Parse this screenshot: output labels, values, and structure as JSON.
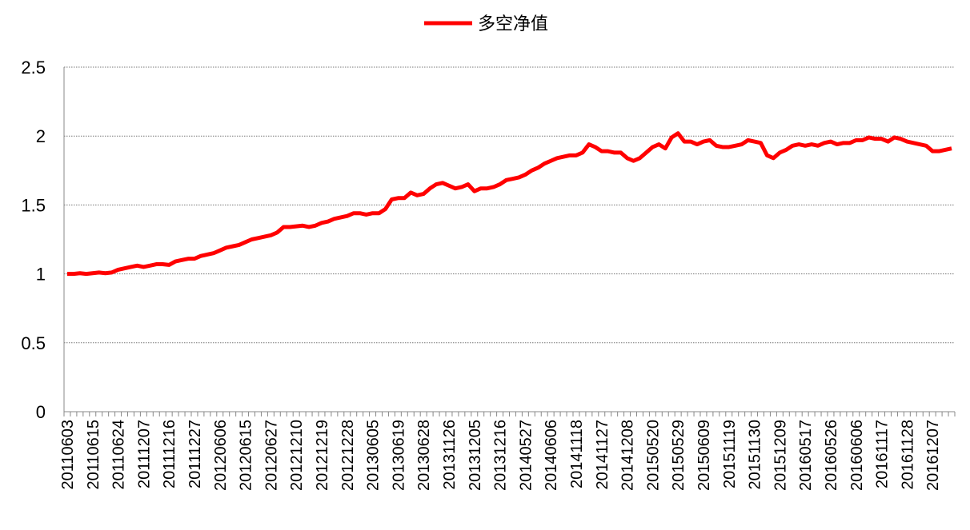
{
  "chart_data": {
    "type": "line",
    "categories": [
      "20110603",
      null,
      null,
      null,
      "20110615",
      null,
      null,
      null,
      "20110624",
      null,
      null,
      null,
      "20111207",
      null,
      null,
      null,
      "20111216",
      null,
      null,
      null,
      "20111227",
      null,
      null,
      null,
      "20120606",
      null,
      null,
      null,
      "20120615",
      null,
      null,
      null,
      "20120627",
      null,
      null,
      null,
      "20121210",
      null,
      null,
      null,
      "20121219",
      null,
      null,
      null,
      "20121228",
      null,
      null,
      null,
      "20130605",
      null,
      null,
      null,
      "20130619",
      null,
      null,
      null,
      "20130628",
      null,
      null,
      null,
      "20131126",
      null,
      null,
      null,
      "20131205",
      null,
      null,
      null,
      "20131216",
      null,
      null,
      null,
      "20140527",
      null,
      null,
      null,
      "20140606",
      null,
      null,
      null,
      "20141118",
      null,
      null,
      null,
      "20141127",
      null,
      null,
      null,
      "20141208",
      null,
      null,
      null,
      "20150520",
      null,
      null,
      null,
      "20150529",
      null,
      null,
      null,
      "20150609",
      null,
      null,
      null,
      "20151119",
      null,
      null,
      null,
      "20151130",
      null,
      null,
      null,
      "20151209",
      null,
      null,
      null,
      "20160517",
      null,
      null,
      null,
      "20160526",
      null,
      null,
      null,
      "20160606",
      null,
      null,
      null,
      "20161117",
      null,
      null,
      null,
      "20161128",
      null,
      null,
      null,
      "20161207",
      null,
      null,
      null
    ],
    "series": [
      {
        "name": "多空净值",
        "color": "#ff0000",
        "values": [
          1.0,
          1.0,
          1.005,
          1.0,
          1.005,
          1.01,
          1.005,
          1.01,
          1.03,
          1.04,
          1.05,
          1.06,
          1.05,
          1.06,
          1.07,
          1.07,
          1.065,
          1.09,
          1.1,
          1.11,
          1.11,
          1.13,
          1.14,
          1.15,
          1.17,
          1.19,
          1.2,
          1.21,
          1.23,
          1.25,
          1.26,
          1.27,
          1.28,
          1.3,
          1.34,
          1.34,
          1.345,
          1.35,
          1.34,
          1.35,
          1.37,
          1.38,
          1.4,
          1.41,
          1.42,
          1.44,
          1.44,
          1.43,
          1.44,
          1.44,
          1.47,
          1.54,
          1.55,
          1.55,
          1.59,
          1.57,
          1.58,
          1.62,
          1.65,
          1.66,
          1.64,
          1.62,
          1.63,
          1.65,
          1.6,
          1.62,
          1.62,
          1.63,
          1.65,
          1.68,
          1.69,
          1.7,
          1.72,
          1.75,
          1.77,
          1.8,
          1.82,
          1.84,
          1.85,
          1.86,
          1.86,
          1.88,
          1.94,
          1.92,
          1.89,
          1.89,
          1.88,
          1.88,
          1.84,
          1.82,
          1.84,
          1.88,
          1.92,
          1.94,
          1.91,
          1.99,
          2.02,
          1.96,
          1.96,
          1.94,
          1.96,
          1.97,
          1.93,
          1.92,
          1.92,
          1.93,
          1.94,
          1.97,
          1.96,
          1.95,
          1.86,
          1.84,
          1.88,
          1.9,
          1.93,
          1.94,
          1.93,
          1.94,
          1.93,
          1.95,
          1.96,
          1.94,
          1.95,
          1.95,
          1.97,
          1.97,
          1.99,
          1.98,
          1.98,
          1.96,
          1.99,
          1.98,
          1.96,
          1.95,
          1.94,
          1.93,
          1.89,
          1.89,
          1.9,
          1.91
        ]
      }
    ],
    "ylim": [
      0,
      2.5
    ],
    "yticks": [
      0,
      0.5,
      1,
      1.5,
      2,
      2.5
    ],
    "grid": true,
    "legend": "top"
  }
}
